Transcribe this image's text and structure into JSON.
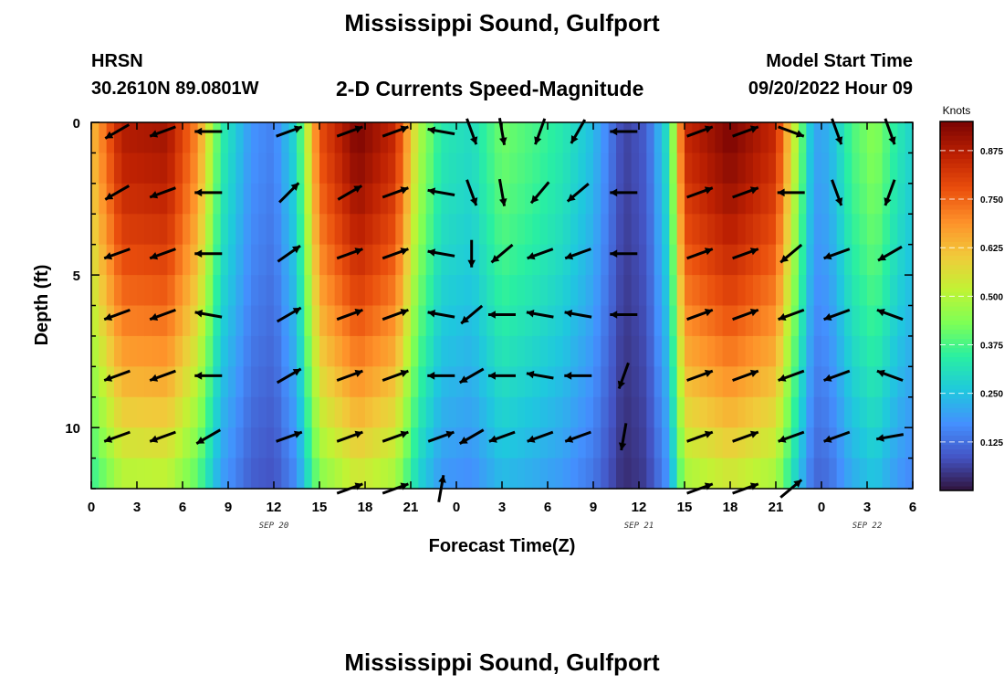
{
  "header": {
    "title": "Mississippi Sound, Gulfport",
    "station": "HRSN",
    "coords": "30.2610N  89.0801W",
    "subtitle": "2-D Currents Speed-Magnitude",
    "model_label": "Model Start Time",
    "model_time": "09/20/2022 Hour 09",
    "footer_title": "Mississippi Sound, Gulfport"
  },
  "chart_data": {
    "type": "heatmap",
    "title": "2-D Currents Speed-Magnitude",
    "xlabel": "Forecast Time(Z)",
    "ylabel": "Depth (ft)",
    "x_tick_labels": [
      "0",
      "3",
      "6",
      "9",
      "12",
      "15",
      "18",
      "21",
      "0",
      "3",
      "6",
      "9",
      "12",
      "15",
      "18",
      "21",
      "0",
      "3",
      "6"
    ],
    "x_range_hours": [
      0,
      54
    ],
    "date_labels": [
      {
        "text": "SEP 20",
        "hour": 12
      },
      {
        "text": "SEP 21",
        "hour": 36
      },
      {
        "text": "SEP 22",
        "hour": 51
      }
    ],
    "y_range_ft": [
      0,
      12
    ],
    "y_tick_labels": [
      {
        "value": 0,
        "label": "0"
      },
      {
        "value": 5,
        "label": "5"
      },
      {
        "value": 10,
        "label": "10"
      }
    ],
    "colorbar": {
      "label": "Knots",
      "range": [
        0.0,
        0.95
      ],
      "ticks": [
        0.125,
        0.25,
        0.375,
        0.5,
        0.625,
        0.75,
        0.875
      ],
      "tick_labels": [
        "0.125",
        "0.250",
        "0.375",
        "0.500",
        "0.625",
        "0.750",
        "0.875"
      ],
      "colors": [
        "#30123b",
        "#4454c4",
        "#4490fe",
        "#1fc8de",
        "#29efa2",
        "#7dff56",
        "#c1f334",
        "#f1ca3a",
        "#fe922a",
        "#ea4f0d",
        "#be2102",
        "#7a0403"
      ]
    },
    "speed_profile": [
      {
        "hour": 0,
        "speed": 0.62
      },
      {
        "hour": 2,
        "speed": 0.88
      },
      {
        "hour": 5,
        "speed": 0.9
      },
      {
        "hour": 7,
        "speed": 0.7
      },
      {
        "hour": 8.5,
        "speed": 0.35
      },
      {
        "hour": 10.5,
        "speed": 0.18
      },
      {
        "hour": 12,
        "speed": 0.15
      },
      {
        "hour": 13.5,
        "speed": 0.3
      },
      {
        "hour": 15,
        "speed": 0.78
      },
      {
        "hour": 17.5,
        "speed": 0.95
      },
      {
        "hour": 20,
        "speed": 0.85
      },
      {
        "hour": 21.5,
        "speed": 0.5
      },
      {
        "hour": 23,
        "speed": 0.33
      },
      {
        "hour": 25,
        "speed": 0.3
      },
      {
        "hour": 27,
        "speed": 0.42
      },
      {
        "hour": 29,
        "speed": 0.38
      },
      {
        "hour": 31,
        "speed": 0.33
      },
      {
        "hour": 33,
        "speed": 0.24
      },
      {
        "hour": 35,
        "speed": 0.06
      },
      {
        "hour": 36.5,
        "speed": 0.1
      },
      {
        "hour": 38,
        "speed": 0.33
      },
      {
        "hour": 39,
        "speed": 0.85
      },
      {
        "hour": 42,
        "speed": 0.95
      },
      {
        "hour": 45,
        "speed": 0.85
      },
      {
        "hour": 46.5,
        "speed": 0.45
      },
      {
        "hour": 47.5,
        "speed": 0.2
      },
      {
        "hour": 48.5,
        "speed": 0.22
      },
      {
        "hour": 50,
        "speed": 0.38
      },
      {
        "hour": 51.5,
        "speed": 0.45
      },
      {
        "hour": 53,
        "speed": 0.33
      },
      {
        "hour": 54,
        "speed": 0.28
      }
    ],
    "vector_times_hours": [
      1.7,
      4.7,
      7.7,
      13,
      17,
      20,
      23,
      25,
      27,
      29.5,
      32,
      35,
      40,
      43,
      46,
      49,
      52.5
    ],
    "vector_depths_ft": [
      0.3,
      2.3,
      4.3,
      6.3,
      8.3,
      10.3,
      12
    ],
    "vector_angles_deg": [
      [
        210,
        200,
        180,
        20,
        20,
        20,
        170,
        290,
        280,
        250,
        240,
        180,
        20,
        20,
        340,
        290,
        290
      ],
      [
        210,
        200,
        180,
        45,
        30,
        20,
        170,
        290,
        280,
        230,
        220,
        180,
        20,
        20,
        180,
        290,
        250
      ],
      [
        200,
        200,
        180,
        35,
        20,
        20,
        170,
        270,
        220,
        200,
        200,
        180,
        20,
        20,
        220,
        200,
        210
      ],
      [
        200,
        200,
        170,
        30,
        20,
        20,
        170,
        220,
        180,
        170,
        170,
        180,
        20,
        20,
        200,
        200,
        160
      ],
      [
        200,
        200,
        180,
        30,
        20,
        20,
        180,
        210,
        180,
        170,
        180,
        250,
        20,
        20,
        200,
        200,
        160
      ],
      [
        200,
        200,
        210,
        20,
        20,
        20,
        20,
        210,
        200,
        200,
        200,
        260,
        20,
        20,
        200,
        200,
        190
      ],
      [
        null,
        null,
        null,
        null,
        20,
        20,
        80,
        null,
        null,
        null,
        null,
        null,
        20,
        20,
        40,
        null,
        null
      ]
    ]
  }
}
